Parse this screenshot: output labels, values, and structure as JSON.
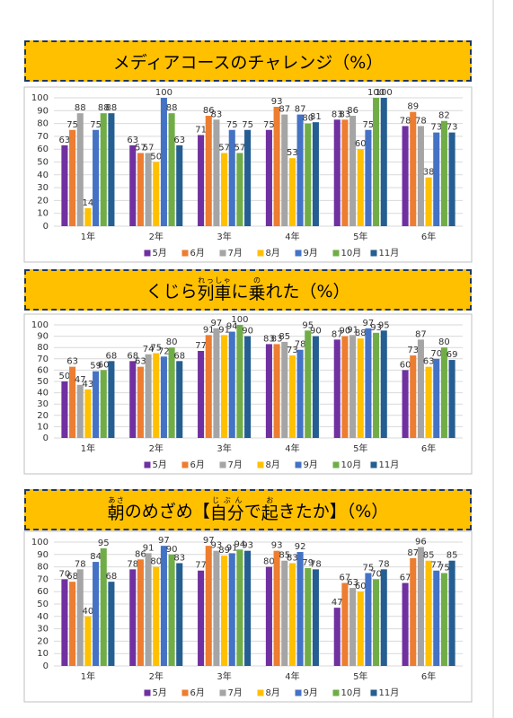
{
  "chart_data": [
    {
      "type": "bar",
      "title": [
        {
          "text": "メディアコースのチャレンジ（%）"
        }
      ],
      "categories": [
        "1年",
        "2年",
        "3年",
        "4年",
        "5年",
        "6年"
      ],
      "series": [
        {
          "name": "5月",
          "color": "#7030a0",
          "values": [
            63,
            63,
            71,
            75,
            83,
            78
          ]
        },
        {
          "name": "6月",
          "color": "#ed7d31",
          "values": [
            75,
            57,
            86,
            93,
            83,
            89
          ]
        },
        {
          "name": "7月",
          "color": "#a5a5a5",
          "values": [
            88,
            57,
            83,
            87,
            86,
            78
          ]
        },
        {
          "name": "8月",
          "color": "#ffc000",
          "values": [
            14,
            50,
            57,
            53,
            60,
            38
          ]
        },
        {
          "name": "9月",
          "color": "#4472c4",
          "values": [
            75,
            100,
            75,
            87,
            75,
            73
          ]
        },
        {
          "name": "10月",
          "color": "#70ad47",
          "values": [
            88,
            88,
            57,
            80,
            100,
            82
          ]
        },
        {
          "name": "11月",
          "color": "#255e91",
          "values": [
            88,
            63,
            75,
            81,
            100,
            73
          ]
        }
      ],
      "ylim": [
        0,
        100
      ],
      "yticks": [
        0,
        10,
        20,
        30,
        40,
        50,
        60,
        70,
        80,
        90,
        100
      ],
      "grid": true,
      "legend": "bottom"
    },
    {
      "type": "bar",
      "title": [
        {
          "text": "くじら"
        },
        {
          "text": "列車",
          "ruby": "れっしゃ"
        },
        {
          "text": "に"
        },
        {
          "text": "乗",
          "ruby": "の"
        },
        {
          "text": "れた（%）"
        }
      ],
      "categories": [
        "1年",
        "2年",
        "3年",
        "4年",
        "5年",
        "6年"
      ],
      "series": [
        {
          "name": "5月",
          "color": "#7030a0",
          "values": [
            50,
            68,
            77,
            83,
            87,
            60
          ]
        },
        {
          "name": "6月",
          "color": "#ed7d31",
          "values": [
            63,
            63,
            91,
            83,
            90,
            73
          ]
        },
        {
          "name": "7月",
          "color": "#a5a5a5",
          "values": [
            47,
            74,
            97,
            85,
            91,
            87
          ]
        },
        {
          "name": "8月",
          "color": "#ffc000",
          "values": [
            43,
            75,
            91,
            73,
            88,
            63
          ]
        },
        {
          "name": "9月",
          "color": "#4472c4",
          "values": [
            59,
            72,
            94,
            78,
            97,
            70
          ]
        },
        {
          "name": "10月",
          "color": "#70ad47",
          "values": [
            60,
            80,
            100,
            95,
            93,
            80
          ]
        },
        {
          "name": "11月",
          "color": "#255e91",
          "values": [
            68,
            68,
            90,
            90,
            95,
            69
          ]
        }
      ],
      "ylim": [
        0,
        100
      ],
      "yticks": [
        0,
        10,
        20,
        30,
        40,
        50,
        60,
        70,
        80,
        90,
        100
      ],
      "grid": true,
      "legend": "bottom"
    },
    {
      "type": "bar",
      "title": [
        {
          "text": "朝",
          "ruby": "あさ"
        },
        {
          "text": "のめざめ【"
        },
        {
          "text": "自分",
          "ruby": "じぶん"
        },
        {
          "text": "で"
        },
        {
          "text": "起",
          "ruby": "お"
        },
        {
          "text": "きたか】（%）"
        }
      ],
      "categories": [
        "1年",
        "2年",
        "3年",
        "4年",
        "5年",
        "6年"
      ],
      "series": [
        {
          "name": "5月",
          "color": "#7030a0",
          "values": [
            70,
            78,
            77,
            80,
            47,
            67
          ]
        },
        {
          "name": "6月",
          "color": "#ed7d31",
          "values": [
            68,
            86,
            97,
            93,
            67,
            87
          ]
        },
        {
          "name": "7月",
          "color": "#a5a5a5",
          "values": [
            78,
            91,
            93,
            85,
            63,
            96
          ]
        },
        {
          "name": "8月",
          "color": "#ffc000",
          "values": [
            40,
            80,
            89,
            83,
            60,
            85
          ]
        },
        {
          "name": "9月",
          "color": "#4472c4",
          "values": [
            84,
            97,
            91,
            92,
            75,
            77
          ]
        },
        {
          "name": "10月",
          "color": "#70ad47",
          "values": [
            95,
            90,
            94,
            79,
            70,
            75
          ]
        },
        {
          "name": "11月",
          "color": "#255e91",
          "values": [
            68,
            83,
            93,
            78,
            78,
            85
          ]
        }
      ],
      "ylim": [
        0,
        100
      ],
      "yticks": [
        0,
        10,
        20,
        30,
        40,
        50,
        60,
        70,
        80,
        90,
        100
      ],
      "grid": true,
      "legend": "bottom"
    }
  ]
}
